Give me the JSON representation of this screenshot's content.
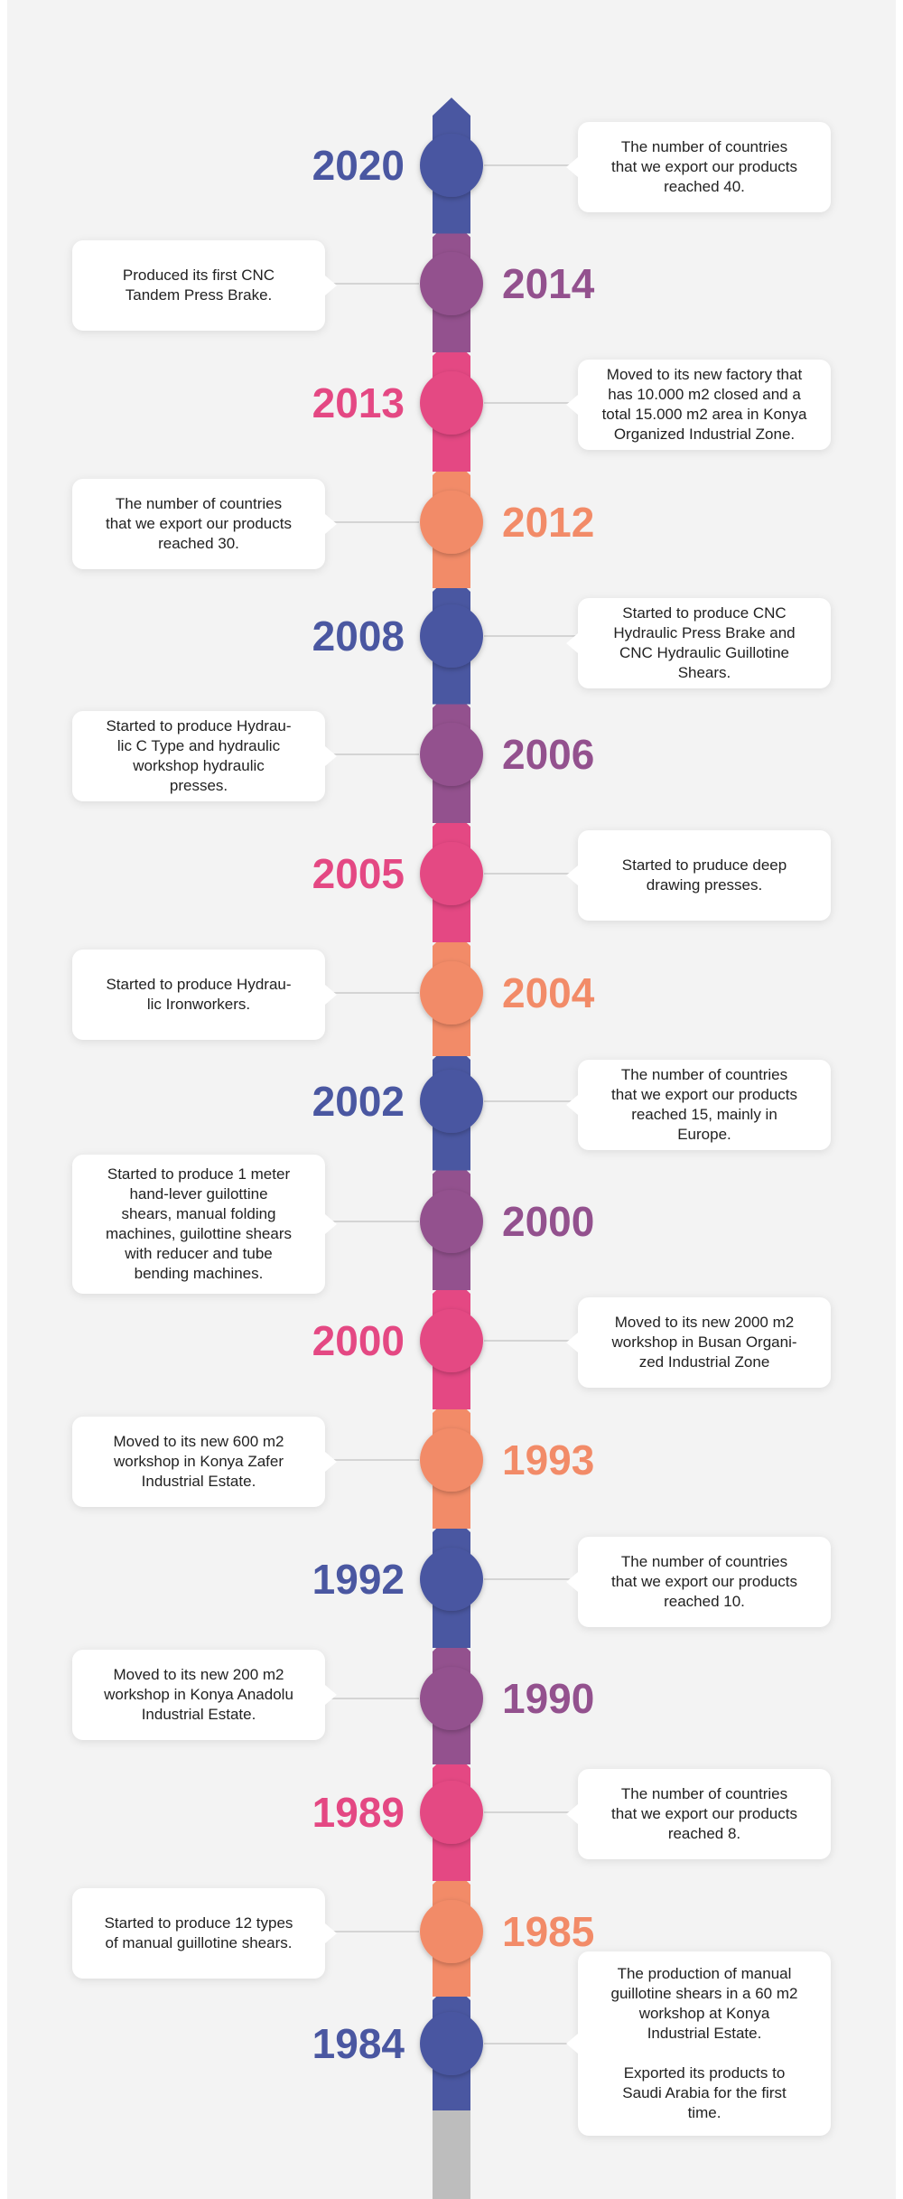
{
  "colors": {
    "blue": "#4a57a1",
    "purple": "#93518e",
    "pink": "#e44883",
    "orange": "#f28b68",
    "gray": "#bdbdbd",
    "background": "#f3f3f3",
    "card": "#ffffff"
  },
  "events": [
    {
      "year": "2020",
      "color": "blue",
      "year_side": "left",
      "text": "The number of countries\nthat we export our products\nreached 40."
    },
    {
      "year": "2014",
      "color": "purple",
      "year_side": "right",
      "text": "Produced its first CNC\nTandem Press Brake."
    },
    {
      "year": "2013",
      "color": "pink",
      "year_side": "left",
      "text": "Moved to its new factory that\nhas 10.000 m2 closed and a\ntotal 15.000 m2 area in Konya\nOrganized Industrial Zone."
    },
    {
      "year": "2012",
      "color": "orange",
      "year_side": "right",
      "text": "The number of countries\nthat we export our products\nreached 30."
    },
    {
      "year": "2008",
      "color": "blue",
      "year_side": "left",
      "text": "Started to produce CNC\nHydraulic Press Brake and\nCNC Hydraulic Guillotine\nShears."
    },
    {
      "year": "2006",
      "color": "purple",
      "year_side": "right",
      "text": "Started to produce Hydrau-\nlic C Type and hydraulic\nworkshop hydraulic\npresses."
    },
    {
      "year": "2005",
      "color": "pink",
      "year_side": "left",
      "text": "Started to pruduce deep\ndrawing presses."
    },
    {
      "year": "2004",
      "color": "orange",
      "year_side": "right",
      "text": "Started to produce Hydrau-\nlic Ironworkers."
    },
    {
      "year": "2002",
      "color": "blue",
      "year_side": "left",
      "text": "The number of countries\nthat we export our products\nreached 15, mainly in\nEurope."
    },
    {
      "year": "2000",
      "color": "purple",
      "year_side": "right",
      "text": "Started to produce 1 meter\nhand-lever guilottine\nshears, manual folding\nmachines, guilottine shears\nwith reducer and tube\nbending machines."
    },
    {
      "year": "2000",
      "color": "pink",
      "year_side": "left",
      "text": "Moved to its new 2000 m2\nworkshop in Busan Organi-\nzed Industrial Zone"
    },
    {
      "year": "1993",
      "color": "orange",
      "year_side": "right",
      "text": "Moved to its new 600 m2\nworkshop in Konya Zafer\nIndustrial Estate."
    },
    {
      "year": "1992",
      "color": "blue",
      "year_side": "left",
      "text": "The number of countries\nthat we export our products\nreached 10."
    },
    {
      "year": "1990",
      "color": "purple",
      "year_side": "right",
      "text": "Moved to its new 200 m2\nworkshop in Konya Anadolu\nIndustrial Estate."
    },
    {
      "year": "1989",
      "color": "pink",
      "year_side": "left",
      "text": "The number of countries\nthat we export our products\nreached 8."
    },
    {
      "year": "1985",
      "color": "orange",
      "year_side": "right",
      "text": "Started to produce 12 types\nof manual guillotine shears."
    },
    {
      "year": "1984",
      "color": "blue",
      "year_side": "left",
      "text": "The production of manual\nguillotine shears in a 60 m2\nworkshop at Konya\nIndustrial Estate.\n\nExported its products to\nSaudi Arabia for the first\ntime."
    }
  ]
}
